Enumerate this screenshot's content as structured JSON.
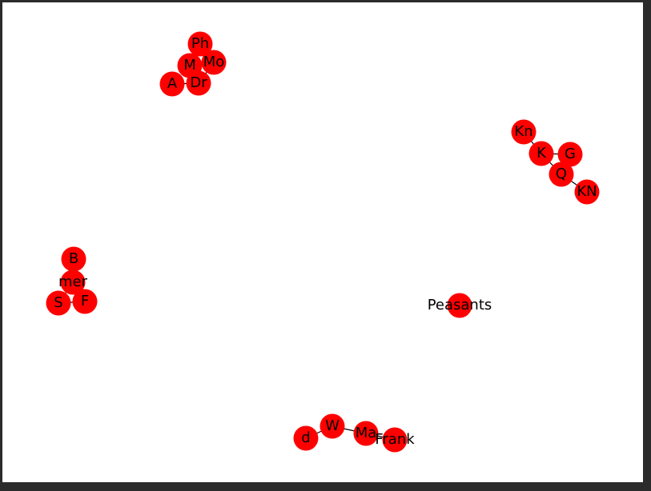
{
  "graph": {
    "node_color": "#ff0000",
    "edge_color": "#000000",
    "background": "#ffffff",
    "nodes": [
      {
        "id": "Ph",
        "label": "Ph"
      },
      {
        "id": "M",
        "label": "M"
      },
      {
        "id": "Mo",
        "label": "Mo"
      },
      {
        "id": "A",
        "label": "A"
      },
      {
        "id": "Dr",
        "label": "Dr"
      },
      {
        "id": "Kn",
        "label": "Kn"
      },
      {
        "id": "K",
        "label": "K"
      },
      {
        "id": "G",
        "label": "G"
      },
      {
        "id": "Q",
        "label": "Q"
      },
      {
        "id": "KN",
        "label": "KN"
      },
      {
        "id": "B",
        "label": "B"
      },
      {
        "id": "mer",
        "label": "mer"
      },
      {
        "id": "S",
        "label": "S"
      },
      {
        "id": "F",
        "label": "F"
      },
      {
        "id": "Peasants",
        "label": "Peasants"
      },
      {
        "id": "d",
        "label": "d"
      },
      {
        "id": "W",
        "label": "W"
      },
      {
        "id": "Ma",
        "label": "Ma"
      },
      {
        "id": "Frank",
        "label": "Frank"
      }
    ],
    "edges": [
      [
        "Ph",
        "M"
      ],
      [
        "Ph",
        "Mo"
      ],
      [
        "M",
        "Mo"
      ],
      [
        "M",
        "Dr"
      ],
      [
        "A",
        "Dr"
      ],
      [
        "Dr",
        "Mo"
      ],
      [
        "Kn",
        "K"
      ],
      [
        "K",
        "G"
      ],
      [
        "K",
        "Q"
      ],
      [
        "G",
        "Q"
      ],
      [
        "Q",
        "KN"
      ],
      [
        "B",
        "mer"
      ],
      [
        "mer",
        "S"
      ],
      [
        "mer",
        "F"
      ],
      [
        "S",
        "F"
      ],
      [
        "d",
        "W"
      ],
      [
        "W",
        "Ma"
      ],
      [
        "Ma",
        "Frank"
      ]
    ]
  }
}
